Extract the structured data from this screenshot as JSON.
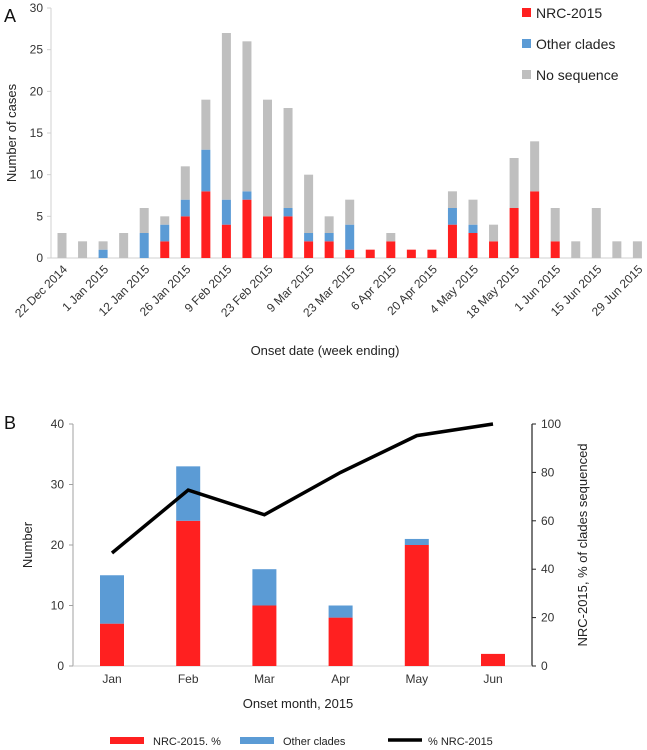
{
  "chart_data": [
    {
      "panel_label": "A",
      "type": "bar",
      "stacked": true,
      "title": "",
      "xlabel": "Onset date (week ending)",
      "ylabel": "Number of cases",
      "ylim": [
        0,
        30
      ],
      "yticks": [
        0,
        5,
        10,
        15,
        20,
        25,
        30
      ],
      "legend_position": "top-right",
      "grid": false,
      "x_tick_labels": [
        "22 Dec 2014",
        "1 Jan 2015",
        "12 Jan 2015",
        "26 Jan 2015",
        "9 Feb 2015",
        "23 Feb 2015",
        "9 Mar 2015",
        "23 Mar 2015",
        "6 Apr 2015",
        "20 Apr 2015",
        "4 May 2015",
        "18 May 2015",
        "1 Jun 2015",
        "15 Jun 2015",
        "29 Jun 2015"
      ],
      "x_tick_every": 2,
      "bar_count": 29,
      "series": [
        {
          "name": "NRC-2015",
          "color": "#ff2020",
          "values": [
            0,
            0,
            0,
            0,
            0,
            2,
            5,
            8,
            4,
            7,
            5,
            5,
            2,
            2,
            1,
            1,
            2,
            1,
            1,
            4,
            3,
            2,
            6,
            8,
            2,
            0,
            0,
            0,
            0
          ]
        },
        {
          "name": "Other clades",
          "color": "#5b9bd5",
          "values": [
            0,
            0,
            1,
            0,
            3,
            2,
            2,
            5,
            3,
            1,
            0,
            1,
            1,
            1,
            3,
            0,
            0,
            0,
            0,
            2,
            1,
            0,
            0,
            0,
            0,
            0,
            0,
            0,
            0
          ]
        },
        {
          "name": "No sequence",
          "color": "#bfbfbf",
          "values": [
            3,
            2,
            1,
            3,
            3,
            1,
            4,
            6,
            20,
            18,
            14,
            12,
            7,
            2,
            3,
            0,
            1,
            0,
            0,
            2,
            3,
            2,
            6,
            6,
            4,
            2,
            6,
            2,
            2
          ]
        }
      ]
    },
    {
      "panel_label": "B",
      "type": "bar",
      "stacked": true,
      "title": "",
      "xlabel": "Onset month, 2015",
      "ylabel": "Number",
      "y2label": "NRC-2015, % of clades sequenced",
      "ylim": [
        0,
        40
      ],
      "yticks": [
        0,
        10,
        20,
        30,
        40
      ],
      "y2lim": [
        0,
        100
      ],
      "y2ticks": [
        0,
        20,
        40,
        60,
        80,
        100
      ],
      "legend_position": "bottom",
      "grid": false,
      "categories": [
        "Jan",
        "Feb",
        "Mar",
        "Apr",
        "May",
        "Jun"
      ],
      "series": [
        {
          "name": "NRC-2015. %",
          "type": "bar",
          "color": "#ff2020",
          "values": [
            7,
            24,
            10,
            8,
            20,
            2
          ]
        },
        {
          "name": "Other clades",
          "type": "bar",
          "color": "#5b9bd5",
          "values": [
            8,
            9,
            6,
            2,
            1,
            0
          ]
        },
        {
          "name": "% NRC-2015",
          "type": "line",
          "axis": "right",
          "color": "#000000",
          "values": [
            46.7,
            72.7,
            62.5,
            80,
            95.2,
            100
          ]
        }
      ]
    }
  ]
}
